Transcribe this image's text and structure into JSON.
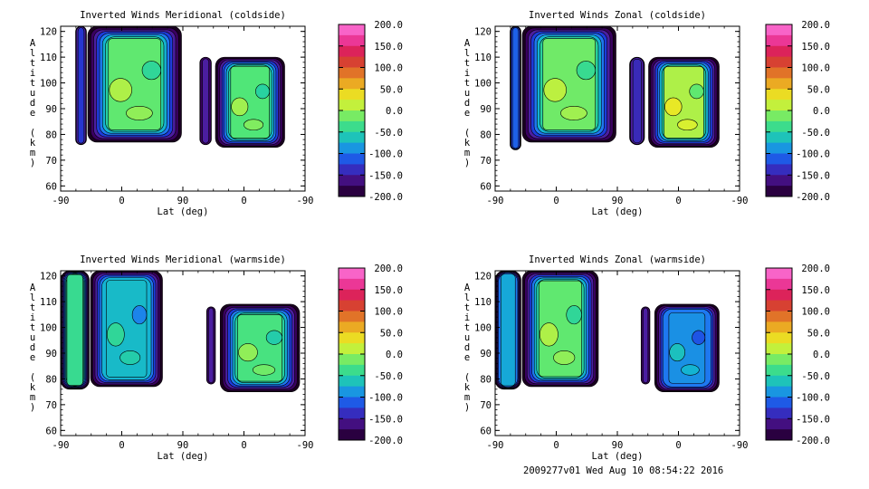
{
  "footer": "2009277v01 Wed Aug 10 08:54:22 2016",
  "chart_data": [
    {
      "type": "heatmap",
      "title": "Inverted Winds Meridional (coldside)",
      "xlabel": "Lat (deg)",
      "ylabel": "Altitude (km)",
      "x_ticks": [
        "-90",
        "0",
        "90",
        "0",
        "-90"
      ],
      "y_ticks": [
        60,
        70,
        80,
        90,
        100,
        110,
        120
      ],
      "ylim": [
        58,
        122
      ],
      "colorbar": {
        "min": -200,
        "max": 200,
        "labels": [
          "200.0",
          "150.0",
          "100.0",
          "50.0",
          "0.0",
          "-50.0",
          "-100.0",
          "-150.0",
          "-200.0"
        ]
      },
      "regions": [
        {
          "x_start": -68,
          "x_end": -52,
          "alt_bottom": 76,
          "alt_top": 122,
          "value": -130
        },
        {
          "x_start": -50,
          "x_end": 88,
          "alt_bottom": 77,
          "alt_top": 122,
          "value": -20
        },
        {
          "x_start": 115,
          "x_end": 132,
          "alt_bottom": 76,
          "alt_top": 110,
          "value": -150
        },
        {
          "x_start": 138,
          "x_end": 240,
          "alt_bottom": 75,
          "alt_top": 110,
          "value": -25
        }
      ]
    },
    {
      "type": "heatmap",
      "title": "Inverted Winds Zonal (coldside)",
      "xlabel": "Lat (deg)",
      "ylabel": "Altitude (km)",
      "x_ticks": [
        "-90",
        "0",
        "90",
        "0",
        "-90"
      ],
      "y_ticks": [
        60,
        70,
        80,
        90,
        100,
        110,
        120
      ],
      "ylim": [
        58,
        122
      ],
      "colorbar": {
        "min": -200,
        "max": 200,
        "labels": [
          "200.0",
          "150.0",
          "100.0",
          "50.0",
          "0.0",
          "-50.0",
          "-100.0",
          "-150.0",
          "-200.0"
        ]
      },
      "regions": [
        {
          "x_start": -68,
          "x_end": -52,
          "alt_bottom": 74,
          "alt_top": 122,
          "value": -110
        },
        {
          "x_start": -50,
          "x_end": 88,
          "alt_bottom": 77,
          "alt_top": 122,
          "value": -15
        },
        {
          "x_start": 108,
          "x_end": 130,
          "alt_bottom": 76,
          "alt_top": 110,
          "value": -140
        },
        {
          "x_start": 136,
          "x_end": 240,
          "alt_bottom": 75,
          "alt_top": 110,
          "value": 5
        }
      ]
    },
    {
      "type": "heatmap",
      "title": "Inverted Winds Meridional (warmside)",
      "xlabel": "Lat (deg)",
      "ylabel": "Altitude (km)",
      "x_ticks": [
        "-90",
        "0",
        "90",
        "0",
        "-90"
      ],
      "y_ticks": [
        60,
        70,
        80,
        90,
        100,
        110,
        120
      ],
      "ylim": [
        58,
        122
      ],
      "colorbar": {
        "min": -200,
        "max": 200,
        "labels": [
          "200.0",
          "150.0",
          "100.0",
          "50.0",
          "0.0",
          "-50.0",
          "-100.0",
          "-150.0",
          "-200.0"
        ]
      },
      "regions": [
        {
          "x_start": -90,
          "x_end": -48,
          "alt_bottom": 76,
          "alt_top": 122,
          "value": -40
        },
        {
          "x_start": -46,
          "x_end": 60,
          "alt_bottom": 77,
          "alt_top": 122,
          "value": -70
        },
        {
          "x_start": 125,
          "x_end": 138,
          "alt_bottom": 78,
          "alt_top": 108,
          "value": -150
        },
        {
          "x_start": 145,
          "x_end": 262,
          "alt_bottom": 75,
          "alt_top": 109,
          "value": -30
        }
      ]
    },
    {
      "type": "heatmap",
      "title": "Inverted Winds Zonal (warmside)",
      "xlabel": "Lat (deg)",
      "ylabel": "Altitude (km)",
      "x_ticks": [
        "-90",
        "0",
        "90",
        "0",
        "-90"
      ],
      "y_ticks": [
        60,
        70,
        80,
        90,
        100,
        110,
        120
      ],
      "ylim": [
        58,
        122
      ],
      "colorbar": {
        "min": -200,
        "max": 200,
        "labels": [
          "200.0",
          "150.0",
          "100.0",
          "50.0",
          "0.0",
          "-50.0",
          "-100.0",
          "-150.0",
          "-200.0"
        ]
      },
      "regions": [
        {
          "x_start": -90,
          "x_end": -52,
          "alt_bottom": 76,
          "alt_top": 122,
          "value": -80
        },
        {
          "x_start": -50,
          "x_end": 62,
          "alt_bottom": 77,
          "alt_top": 122,
          "value": -20
        },
        {
          "x_start": 125,
          "x_end": 138,
          "alt_bottom": 78,
          "alt_top": 108,
          "value": -150
        },
        {
          "x_start": 145,
          "x_end": 240,
          "alt_bottom": 75,
          "alt_top": 109,
          "value": -90
        }
      ]
    }
  ]
}
